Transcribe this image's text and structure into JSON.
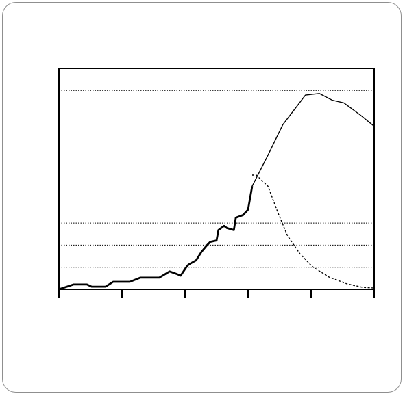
{
  "chart_data": {
    "type": "line",
    "title": "",
    "xlabel": "",
    "ylabel": "",
    "xlim": [
      0,
      100
    ],
    "ylim": [
      0,
      100
    ],
    "y_gridlines": [
      10,
      20,
      30,
      90
    ],
    "x_ticks": [
      0,
      20,
      40,
      60,
      80,
      100
    ],
    "grid": "horizontal-dotted",
    "legend": "none",
    "series": [
      {
        "style": "solid-bold",
        "x": [
          0,
          4.6,
          8.9,
          10.4,
          14.8,
          17.2,
          22.5,
          25.8,
          31.8,
          35.1,
          37.3,
          38.6,
          40.4,
          41.1,
          43.5,
          45.2,
          47.0,
          48.0,
          50.0,
          50.6,
          52.4,
          53.3,
          55.5,
          56.1,
          58.4,
          60.0,
          61.3
        ],
        "y": [
          0,
          2.2,
          2.2,
          1.2,
          1.2,
          3.4,
          3.4,
          5.3,
          5.3,
          8.1,
          7.0,
          6.2,
          10.0,
          11.2,
          13.1,
          16.9,
          20.0,
          21.5,
          22.1,
          26.8,
          28.7,
          27.7,
          26.8,
          32.4,
          33.6,
          36.1,
          46.7
        ]
      },
      {
        "style": "solid-thin",
        "x": [
          61.3,
          66.3,
          71.0,
          78.2,
          82.6,
          86.7,
          90.4,
          95.7,
          100
        ],
        "y": [
          46.7,
          60.7,
          74.5,
          87.9,
          88.6,
          85.6,
          84.4,
          78.8,
          73.8
        ]
      },
      {
        "style": "dotted",
        "x": [
          61.3,
          62.6,
          66.3,
          69.6,
          72.5,
          76.4,
          80.4,
          85.6,
          91.3,
          96.4,
          100
        ],
        "y": [
          51.7,
          51.7,
          46.7,
          34.2,
          24.3,
          16.2,
          10.3,
          5.6,
          2.5,
          0.9,
          0.6
        ]
      }
    ]
  }
}
